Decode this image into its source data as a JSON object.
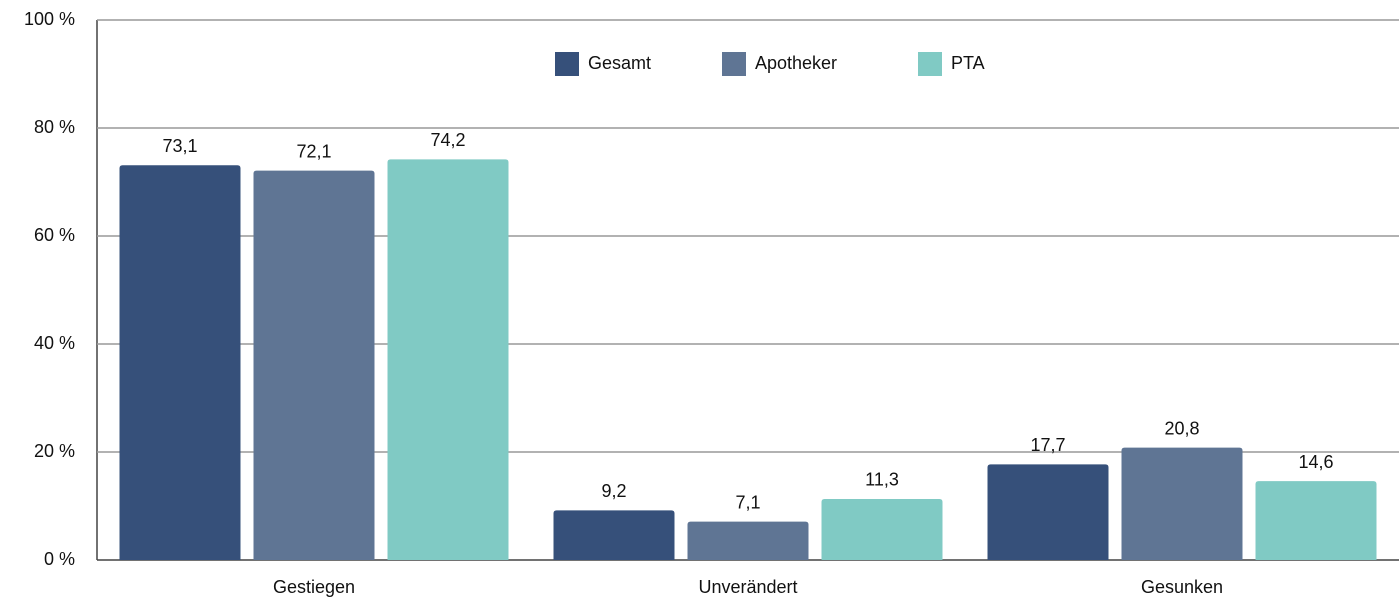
{
  "chart_data": {
    "type": "bar",
    "categories": [
      "Gestiegen",
      "Unverändert",
      "Gesunken"
    ],
    "series": [
      {
        "name": "Gesamt",
        "color": "#36507a",
        "values": [
          73.1,
          9.2,
          17.7
        ],
        "value_labels": [
          "73,1",
          "9,2",
          "17,7"
        ]
      },
      {
        "name": "Apotheker",
        "color": "#5f7594",
        "values": [
          72.1,
          7.1,
          20.8
        ],
        "value_labels": [
          "72,1",
          "7,1",
          "20,8"
        ]
      },
      {
        "name": "PTA",
        "color": "#80cac4",
        "values": [
          74.2,
          11.3,
          14.6
        ],
        "value_labels": [
          "74,2",
          "11,3",
          "14,6"
        ]
      }
    ],
    "ylim": [
      0,
      100
    ],
    "yticks": [
      {
        "value": 0,
        "label": "0 %"
      },
      {
        "value": 20,
        "label": "20 %"
      },
      {
        "value": 40,
        "label": "40 %"
      },
      {
        "value": 60,
        "label": "60 %"
      },
      {
        "value": 80,
        "label": "80 %"
      },
      {
        "value": 100,
        "label": "100 %"
      }
    ],
    "grid": true,
    "legend": "top"
  }
}
